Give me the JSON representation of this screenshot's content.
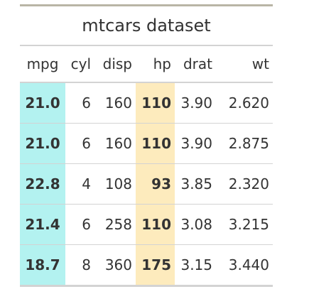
{
  "table": {
    "title": "mtcars dataset",
    "columns": [
      "mpg",
      "cyl",
      "disp",
      "hp",
      "drat",
      "wt"
    ],
    "rows": [
      [
        "21.0",
        "6",
        "160",
        "110",
        "3.90",
        "2.620"
      ],
      [
        "21.0",
        "6",
        "160",
        "110",
        "3.90",
        "2.875"
      ],
      [
        "22.8",
        "4",
        "108",
        "93",
        "3.85",
        "2.320"
      ],
      [
        "21.4",
        "6",
        "258",
        "110",
        "3.08",
        "3.215"
      ],
      [
        "18.7",
        "8",
        "360",
        "175",
        "3.15",
        "3.440"
      ]
    ],
    "highlight": {
      "mpg_color": "#b3f2f0",
      "hp_color": "#fdebbd"
    }
  }
}
